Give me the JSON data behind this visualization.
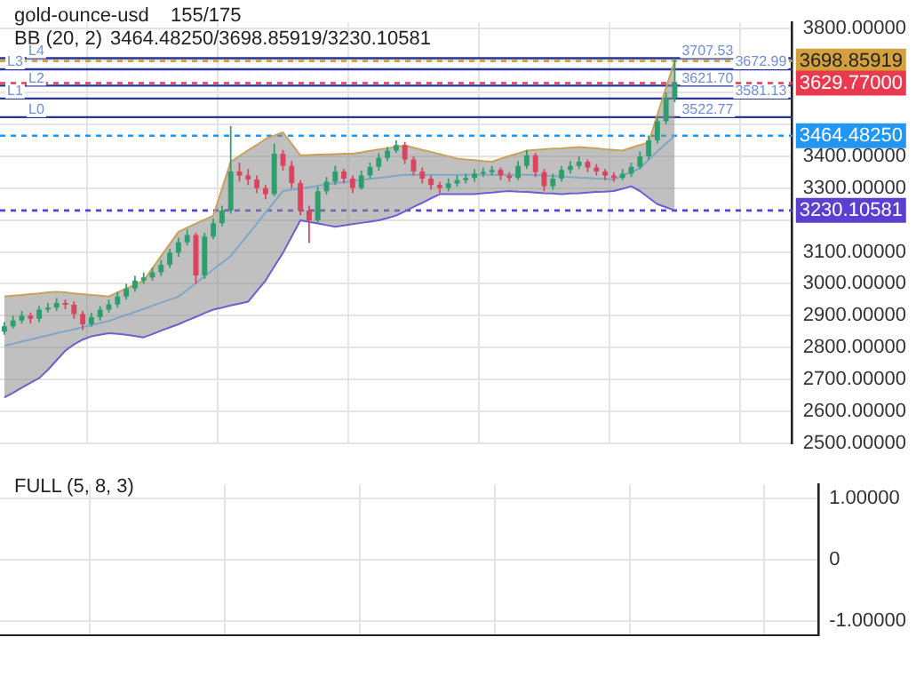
{
  "chart_data": [
    {
      "type": "candlestick",
      "title": "gold-ounce-usd",
      "annotations": [
        "155/175",
        "BB (20, 2)",
        "3464.48250/3698.85919/3230.10581",
        {
          "text": "L4",
          "y": 3707.53
        },
        {
          "text": "L3",
          "y": 3672.99
        },
        {
          "text": "L2",
          "y": 3621.7
        },
        {
          "text": "L1",
          "y": 3581.13
        },
        {
          "text": "L0",
          "y": 3522.77
        }
      ],
      "categories": [
        null,
        null,
        null,
        null,
        null,
        null,
        null,
        null,
        null,
        null,
        null,
        null,
        null,
        null,
        null,
        null,
        null,
        null,
        null,
        null,
        null,
        null,
        null,
        null,
        null,
        null,
        null,
        null,
        null,
        null,
        null,
        null,
        null,
        null,
        null,
        null,
        null,
        null,
        null,
        null,
        null,
        null,
        null,
        null,
        null,
        null,
        null,
        null,
        null,
        null,
        null,
        null,
        null,
        null,
        null,
        null,
        null,
        null,
        null,
        null,
        null,
        null,
        null,
        null,
        null,
        null,
        null,
        null,
        null,
        null,
        null,
        null,
        null,
        null,
        null,
        null,
        null,
        null,
        null,
        null,
        null,
        null,
        null,
        null,
        null,
        null,
        null,
        null,
        null,
        null,
        null
      ],
      "ohlc": [
        [
          2850,
          2880,
          2840,
          2867
        ],
        [
          2867,
          2900,
          2860,
          2885
        ],
        [
          2885,
          2915,
          2875,
          2900
        ],
        [
          2900,
          2910,
          2875,
          2890
        ],
        [
          2890,
          2930,
          2880,
          2919
        ],
        [
          2919,
          2940,
          2910,
          2925
        ],
        [
          2925,
          2955,
          2915,
          2940
        ],
        [
          2940,
          2950,
          2920,
          2934
        ],
        [
          2934,
          2945,
          2890,
          2905
        ],
        [
          2905,
          2915,
          2855,
          2873
        ],
        [
          2873,
          2910,
          2865,
          2895
        ],
        [
          2895,
          2930,
          2885,
          2919
        ],
        [
          2919,
          2950,
          2910,
          2935
        ],
        [
          2935,
          2975,
          2925,
          2960
        ],
        [
          2960,
          3000,
          2950,
          2985
        ],
        [
          2985,
          3025,
          2975,
          3010
        ],
        [
          3010,
          3035,
          3000,
          3020
        ],
        [
          3020,
          3050,
          3010,
          3036
        ],
        [
          3036,
          3075,
          3025,
          3060
        ],
        [
          3060,
          3110,
          3050,
          3097
        ],
        [
          3097,
          3145,
          3085,
          3130
        ],
        [
          3130,
          3170,
          3120,
          3153
        ],
        [
          3153,
          3160,
          3000,
          3026
        ],
        [
          3026,
          3160,
          3015,
          3148
        ],
        [
          3148,
          3205,
          3140,
          3190
        ],
        [
          3190,
          3245,
          3180,
          3230
        ],
        [
          3230,
          3495,
          3220,
          3352
        ],
        [
          3352,
          3380,
          3320,
          3340
        ],
        [
          3340,
          3360,
          3310,
          3327
        ],
        [
          3327,
          3340,
          3285,
          3300
        ],
        [
          3300,
          3310,
          3265,
          3281
        ],
        [
          3281,
          3440,
          3275,
          3408
        ],
        [
          3408,
          3420,
          3355,
          3370
        ],
        [
          3370,
          3385,
          3300,
          3316
        ],
        [
          3316,
          3325,
          3215,
          3230
        ],
        [
          3230,
          3245,
          3128,
          3199
        ],
        [
          3199,
          3305,
          3190,
          3290
        ],
        [
          3290,
          3335,
          3280,
          3320
        ],
        [
          3320,
          3370,
          3310,
          3352
        ],
        [
          3352,
          3360,
          3315,
          3330
        ],
        [
          3330,
          3340,
          3285,
          3301
        ],
        [
          3301,
          3355,
          3295,
          3340
        ],
        [
          3340,
          3380,
          3330,
          3367
        ],
        [
          3367,
          3410,
          3355,
          3395
        ],
        [
          3395,
          3430,
          3385,
          3418
        ],
        [
          3418,
          3450,
          3410,
          3435
        ],
        [
          3435,
          3445,
          3375,
          3390
        ],
        [
          3390,
          3400,
          3340,
          3352
        ],
        [
          3352,
          3365,
          3315,
          3330
        ],
        [
          3330,
          3340,
          3295,
          3310
        ],
        [
          3310,
          3320,
          3285,
          3301
        ],
        [
          3301,
          3330,
          3290,
          3315
        ],
        [
          3315,
          3340,
          3305,
          3325
        ],
        [
          3325,
          3345,
          3315,
          3332
        ],
        [
          3332,
          3360,
          3320,
          3345
        ],
        [
          3345,
          3365,
          3335,
          3350
        ],
        [
          3350,
          3370,
          3340,
          3357
        ],
        [
          3357,
          3365,
          3325,
          3340
        ],
        [
          3340,
          3350,
          3320,
          3332
        ],
        [
          3332,
          3385,
          3325,
          3370
        ],
        [
          3370,
          3420,
          3360,
          3403
        ],
        [
          3403,
          3410,
          3335,
          3350
        ],
        [
          3350,
          3360,
          3290,
          3306
        ],
        [
          3306,
          3345,
          3295,
          3330
        ],
        [
          3330,
          3370,
          3320,
          3357
        ],
        [
          3357,
          3385,
          3345,
          3370
        ],
        [
          3370,
          3400,
          3360,
          3383
        ],
        [
          3383,
          3390,
          3350,
          3365
        ],
        [
          3365,
          3375,
          3340,
          3352
        ],
        [
          3352,
          3360,
          3325,
          3340
        ],
        [
          3340,
          3350,
          3320,
          3332
        ],
        [
          3332,
          3360,
          3325,
          3345
        ],
        [
          3345,
          3380,
          3335,
          3367
        ],
        [
          3367,
          3415,
          3360,
          3400
        ],
        [
          3400,
          3465,
          3390,
          3450
        ],
        [
          3450,
          3525,
          3440,
          3510
        ],
        [
          3510,
          3600,
          3500,
          3582
        ],
        [
          3582,
          3707.53,
          3570,
          3629.77
        ],
        null,
        null,
        null,
        null,
        null,
        null,
        null,
        null,
        null,
        null,
        null,
        null,
        null
      ],
      "series": [
        {
          "type": "line",
          "color": "#c9a25a",
          "values": [
            2960,
            2963,
            2965,
            2968,
            2970,
            2973,
            2975,
            2973,
            2970,
            2968,
            2965,
            2963,
            2960,
            2973,
            2985,
            2998,
            3010,
            3048,
            3087,
            3125,
            3163,
            3176,
            3189,
            3201,
            3214,
            3298,
            3383,
            3401,
            3419,
            3436,
            3454,
            3465,
            3475,
            3439,
            3403,
            3404,
            3405,
            3406,
            3407,
            3408,
            3408,
            3412,
            3417,
            3421,
            3425,
            3430,
            3434,
            3427,
            3420,
            3414,
            3407,
            3400,
            3393,
            3390,
            3388,
            3385,
            3383,
            3392,
            3401,
            3409,
            3418,
            3420,
            3422,
            3424,
            3425,
            3427,
            3429,
            3427,
            3425,
            3422,
            3420,
            3418,
            3427,
            3435,
            3444,
            3530,
            3615,
            3698.85919,
            null,
            null,
            null,
            null,
            null,
            null,
            null,
            null,
            null,
            null,
            null,
            null,
            null
          ]
        },
        {
          "type": "line",
          "color": "#6c5fd6",
          "values": [
            2643,
            2658,
            2674,
            2689,
            2704,
            2730,
            2760,
            2790,
            2810,
            2825,
            2835,
            2840,
            2845,
            2843,
            2840,
            2836,
            2832,
            2842,
            2853,
            2863,
            2873,
            2885,
            2896,
            2908,
            2919,
            2925,
            2932,
            2938,
            2944,
            2977,
            3010,
            3054,
            3097,
            3148,
            3199,
            3194,
            3189,
            3184,
            3179,
            3183,
            3187,
            3191,
            3195,
            3199,
            3206,
            3214,
            3227,
            3241,
            3254,
            3268,
            3281,
            3281,
            3281,
            3281,
            3281,
            3284,
            3286,
            3289,
            3291,
            3289,
            3288,
            3286,
            3284,
            3283,
            3281,
            3283,
            3284,
            3286,
            3288,
            3289,
            3291,
            3298,
            3306,
            3291,
            3270,
            3250,
            3240,
            3230.10581,
            null,
            null,
            null,
            null,
            null,
            null,
            null,
            null,
            null,
            null,
            null,
            null,
            null
          ]
        },
        {
          "type": "line",
          "color": "#7fa6c4",
          "values": [
            2806,
            2812,
            2819,
            2825,
            2832,
            2838,
            2845,
            2851,
            2857,
            2864,
            2870,
            2877,
            2883,
            2893,
            2902,
            2912,
            2921,
            2931,
            2941,
            2950,
            2960,
            2981,
            3002,
            3024,
            3045,
            3066,
            3087,
            3121,
            3155,
            3189,
            3223,
            3257,
            3291,
            3295,
            3299,
            3303,
            3308,
            3312,
            3316,
            3319,
            3322,
            3326,
            3329,
            3332,
            3335,
            3339,
            3342,
            3342,
            3342,
            3342,
            3342,
            3342,
            3342,
            3342,
            3342,
            3342,
            3342,
            3342,
            3342,
            3342,
            3342,
            3341,
            3339,
            3338,
            3336,
            3335,
            3333,
            3332,
            3330,
            3329,
            3327,
            3339,
            3351,
            3362,
            3390,
            3415,
            3440,
            3464.4825,
            null,
            null,
            null,
            null,
            null,
            null,
            null,
            null,
            null,
            null,
            null,
            null,
            null
          ],
          "upper": [
            2960,
            2963,
            2965,
            2968,
            2970,
            2973,
            2975,
            2973,
            2970,
            2968,
            2965,
            2963,
            2960,
            2973,
            2985,
            2998,
            3010,
            3048,
            3087,
            3125,
            3163,
            3176,
            3189,
            3201,
            3214,
            3298,
            3383,
            3401,
            3419,
            3436,
            3454,
            3465,
            3475,
            3439,
            3403,
            3404,
            3405,
            3406,
            3407,
            3408,
            3408,
            3412,
            3417,
            3421,
            3425,
            3430,
            3434,
            3427,
            3420,
            3414,
            3407,
            3400,
            3393,
            3390,
            3388,
            3385,
            3383,
            3392,
            3401,
            3409,
            3418,
            3420,
            3422,
            3424,
            3425,
            3427,
            3429,
            3427,
            3425,
            3422,
            3420,
            3418,
            3427,
            3435,
            3444,
            3530,
            3615,
            3698.85919,
            null,
            null,
            null,
            null,
            null,
            null,
            null,
            null,
            null,
            null,
            null,
            null,
            null
          ],
          "lower": [
            2643,
            2658,
            2674,
            2689,
            2704,
            2730,
            2760,
            2790,
            2810,
            2825,
            2835,
            2840,
            2845,
            2843,
            2840,
            2836,
            2832,
            2842,
            2853,
            2863,
            2873,
            2885,
            2896,
            2908,
            2919,
            2925,
            2932,
            2938,
            2944,
            2977,
            3010,
            3054,
            3097,
            3148,
            3199,
            3194,
            3189,
            3184,
            3179,
            3183,
            3187,
            3191,
            3195,
            3199,
            3206,
            3214,
            3227,
            3241,
            3254,
            3268,
            3281,
            3281,
            3281,
            3281,
            3281,
            3284,
            3286,
            3289,
            3291,
            3289,
            3288,
            3286,
            3284,
            3283,
            3281,
            3283,
            3284,
            3286,
            3288,
            3289,
            3291,
            3298,
            3306,
            3291,
            3270,
            3250,
            3240,
            3230.10581,
            null,
            null,
            null,
            null,
            null,
            null,
            null,
            null,
            null,
            null,
            null,
            null,
            null
          ]
        }
      ],
      "ylim": [
        2500,
        3820
      ],
      "yticks": [
        {
          "value": 2500,
          "label": "2500.00000"
        },
        {
          "value": 2600,
          "label": "2600.00000"
        },
        {
          "value": 2700,
          "label": "2700.00000"
        },
        {
          "value": 2800,
          "label": "2800.00000"
        },
        {
          "value": 2900,
          "label": "2900.00000"
        },
        {
          "value": 3000,
          "label": "3000.00000"
        },
        {
          "value": 3100,
          "label": "3100.00000"
        },
        {
          "value": 3200,
          "label": null
        },
        {
          "value": 3300,
          "label": "3300.00000"
        },
        {
          "value": 3400,
          "label": "3400.00000"
        },
        {
          "value": 3500,
          "label": null
        },
        {
          "value": 3600,
          "label": null
        },
        {
          "value": 3700,
          "label": null
        },
        {
          "value": 3800,
          "label": "3800.00000"
        }
      ],
      "ref_lines": [
        {
          "axis": "y",
          "value": 3707.53,
          "label": "3707.53",
          "color": "#283593",
          "line_style": "solid"
        },
        {
          "axis": "y",
          "value": 3672.99,
          "label": "3672.99",
          "color": "#283593",
          "line_style": "solid"
        },
        {
          "axis": "y",
          "value": 3621.7,
          "label": "3621.70",
          "color": "#283593",
          "line_style": "solid"
        },
        {
          "axis": "y",
          "value": 3581.13,
          "label": "3581.13",
          "color": "#283593",
          "line_style": "solid"
        },
        {
          "axis": "y",
          "value": 3522.77,
          "label": "3522.77",
          "color": "#283593",
          "line_style": "solid"
        },
        {
          "axis": "y",
          "value": 3698.85919,
          "label": "3698.85919",
          "color": "#d4a03c",
          "line_style": "dashed"
        },
        {
          "axis": "y",
          "value": 3629.77,
          "label": "3629.77000",
          "color": "#e8394f",
          "line_style": "dashed"
        },
        {
          "axis": "y",
          "value": 3464.4825,
          "label": "3464.48250",
          "color": "#2196f3",
          "line_style": "dashed"
        },
        {
          "axis": "y",
          "value": 3230.10581,
          "label": "3230.10581",
          "color": "#5b3fd1",
          "line_style": "dashed"
        }
      ],
      "grid": true,
      "tick_labels": "y"
    },
    {
      "type": "line",
      "title": "FULL (5, 8, 3)",
      "categories": [
        null,
        null,
        null,
        null,
        null,
        null,
        null,
        null,
        null,
        null,
        null,
        null,
        null,
        null,
        null,
        null,
        null,
        null,
        null,
        null,
        null,
        null,
        null,
        null,
        null,
        null,
        null,
        null,
        null,
        null,
        null,
        null,
        null,
        null,
        null,
        null,
        null,
        null,
        null,
        null,
        null,
        null,
        null,
        null,
        null,
        null,
        null,
        null,
        null,
        null,
        null,
        null,
        null,
        null,
        null,
        null,
        null,
        null,
        null,
        null,
        null,
        null,
        null,
        null,
        null,
        null,
        null,
        null,
        null,
        null,
        null,
        null,
        null,
        null,
        null,
        null,
        null,
        null,
        null,
        null,
        null,
        null,
        null,
        null,
        null,
        null,
        null,
        null,
        null,
        null,
        null
      ],
      "ylim": [
        -1.23,
        1.23
      ],
      "yticks": [
        {
          "value": 1,
          "label": "1.00000"
        },
        0,
        {
          "value": -1,
          "label": "-1.00000"
        }
      ],
      "grid": true,
      "tick_labels": "y"
    }
  ]
}
